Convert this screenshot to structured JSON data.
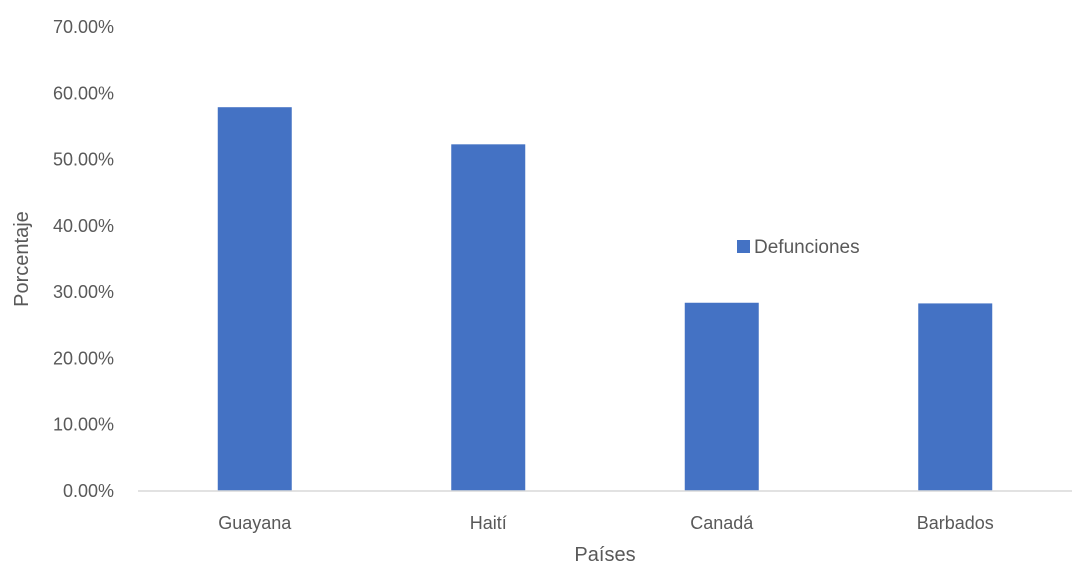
{
  "chart_data": {
    "type": "bar",
    "categories": [
      "Guayana",
      "Haití",
      "Canadá",
      "Barbados"
    ],
    "series": [
      {
        "name": "Defunciones",
        "values": [
          57.9,
          52.3,
          28.4,
          28.3
        ]
      }
    ],
    "title": "",
    "xlabel": "Países",
    "ylabel": "Porcentaje",
    "ylim": [
      0,
      70
    ],
    "yticks": [
      "0.00%",
      "10.00%",
      "20.00%",
      "30.00%",
      "40.00%",
      "50.00%",
      "60.00%",
      "70.00%"
    ],
    "grid": false,
    "legend": "center-right",
    "colors": {
      "bar": "#4472C4",
      "axis": "#D9D9D9",
      "text": "#595959"
    }
  }
}
